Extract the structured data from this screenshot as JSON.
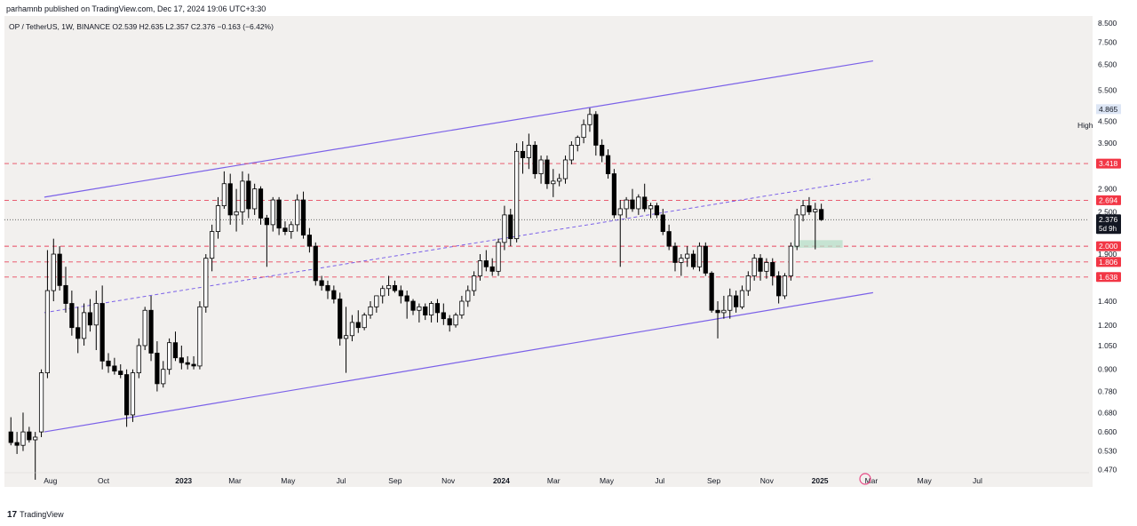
{
  "header": {
    "published_text": "parhamnb published on TradingView.com, Dec 17, 2024 19:06 UTC+3:30"
  },
  "symbol": {
    "pair": "OP / TetherUS, 1W, BINANCE",
    "open": "O2.539",
    "high": "H2.635",
    "low": "L2.357",
    "close": "C2.376",
    "change": "−0.163 (−6.42%)"
  },
  "footer": {
    "brand": "TradingView",
    "logo_text": "17"
  },
  "colors": {
    "background": "#f2f0ee",
    "candle_up": "#ffffff",
    "candle_down": "#000000",
    "channel_line": "#7b61e8",
    "level_line": "#e8475f",
    "label_red": "#f23645",
    "zone": "#b7dfc8"
  },
  "chart_data": {
    "type": "candlestick",
    "title": "OP / TetherUS, 1W, BINANCE",
    "y_scale": "log",
    "ylim": [
      0.42,
      8.9
    ],
    "y_ticks": [
      "8.500",
      "7.500",
      "6.500",
      "5.500",
      "4.500",
      "3.900",
      "3.418",
      "2.900",
      "2.694",
      "2.500",
      "2.376",
      "2.000",
      "1.900",
      "1.806",
      "1.638",
      "1.400",
      "1.200",
      "1.050",
      "0.900",
      "0.780",
      "0.680",
      "0.600",
      "0.530",
      "0.470"
    ],
    "x_ticks": [
      "Aug",
      "Oct",
      "2023",
      "Mar",
      "May",
      "Jul",
      "Sep",
      "Nov",
      "2024",
      "Mar",
      "May",
      "Jul",
      "Sep",
      "Nov",
      "2025",
      "Mar",
      "May",
      "Jul"
    ],
    "x_tick_dates": [
      "2022-08-01",
      "2022-10-01",
      "2023-01-01",
      "2023-03-01",
      "2023-05-01",
      "2023-07-01",
      "2023-09-01",
      "2023-11-01",
      "2024-01-01",
      "2024-03-01",
      "2024-05-01",
      "2024-07-01",
      "2024-09-01",
      "2024-11-01",
      "2025-01-01",
      "2025-03-01",
      "2025-05-01",
      "2025-07-01"
    ],
    "first_candle_date": "2022-06-13",
    "candle_interval": "1W",
    "ohlc": [
      [
        0.6,
        0.66,
        0.55,
        0.56
      ],
      [
        0.56,
        0.6,
        0.52,
        0.55
      ],
      [
        0.55,
        0.68,
        0.53,
        0.6
      ],
      [
        0.6,
        0.62,
        0.56,
        0.57
      ],
      [
        0.57,
        0.6,
        0.44,
        0.58
      ],
      [
        0.6,
        0.9,
        0.58,
        0.88
      ],
      [
        0.88,
        1.95,
        0.85,
        1.5
      ],
      [
        1.5,
        2.1,
        1.4,
        1.9
      ],
      [
        1.9,
        2.0,
        1.5,
        1.55
      ],
      [
        1.55,
        1.75,
        1.3,
        1.38
      ],
      [
        1.38,
        1.5,
        1.12,
        1.18
      ],
      [
        1.18,
        1.35,
        1.0,
        1.1
      ],
      [
        1.1,
        1.38,
        1.05,
        1.3
      ],
      [
        1.3,
        1.42,
        1.15,
        1.2
      ],
      [
        1.2,
        1.5,
        1.02,
        1.38
      ],
      [
        1.38,
        1.55,
        0.9,
        0.95
      ],
      [
        0.95,
        1.0,
        0.88,
        0.92
      ],
      [
        0.92,
        0.97,
        0.87,
        0.89
      ],
      [
        0.89,
        0.93,
        0.85,
        0.87
      ],
      [
        0.87,
        0.9,
        0.62,
        0.67
      ],
      [
        0.67,
        0.9,
        0.64,
        0.88
      ],
      [
        0.88,
        1.1,
        0.85,
        1.05
      ],
      [
        1.05,
        1.35,
        1.02,
        1.32
      ],
      [
        1.32,
        1.45,
        0.95,
        1.0
      ],
      [
        1.0,
        1.08,
        0.78,
        0.82
      ],
      [
        0.82,
        0.95,
        0.8,
        0.9
      ],
      [
        0.9,
        1.1,
        0.87,
        1.07
      ],
      [
        1.07,
        1.15,
        0.95,
        0.97
      ],
      [
        0.97,
        1.05,
        0.9,
        0.94
      ],
      [
        0.94,
        0.98,
        0.9,
        0.93
      ],
      [
        0.93,
        0.98,
        0.9,
        0.92
      ],
      [
        0.92,
        1.4,
        0.9,
        1.35
      ],
      [
        1.35,
        1.9,
        1.3,
        1.85
      ],
      [
        1.85,
        2.3,
        1.7,
        2.2
      ],
      [
        2.2,
        2.75,
        2.1,
        2.6
      ],
      [
        2.6,
        3.25,
        2.55,
        3.0
      ],
      [
        3.0,
        3.2,
        2.3,
        2.45
      ],
      [
        2.45,
        2.9,
        2.2,
        2.5
      ],
      [
        2.5,
        3.25,
        2.3,
        3.05
      ],
      [
        3.05,
        3.2,
        2.4,
        2.55
      ],
      [
        2.55,
        3.0,
        2.45,
        2.9
      ],
      [
        2.9,
        2.95,
        2.3,
        2.4
      ],
      [
        2.4,
        2.45,
        1.75,
        2.3
      ],
      [
        2.3,
        2.75,
        2.2,
        2.7
      ],
      [
        2.7,
        2.75,
        2.15,
        2.25
      ],
      [
        2.25,
        2.35,
        2.15,
        2.2
      ],
      [
        2.2,
        2.35,
        2.1,
        2.3
      ],
      [
        2.3,
        2.8,
        2.2,
        2.7
      ],
      [
        2.7,
        2.85,
        2.1,
        2.15
      ],
      [
        2.15,
        2.25,
        1.92,
        2.0
      ],
      [
        2.0,
        2.05,
        1.55,
        1.6
      ],
      [
        1.6,
        1.65,
        1.5,
        1.55
      ],
      [
        1.55,
        1.6,
        1.42,
        1.5
      ],
      [
        1.5,
        1.55,
        1.38,
        1.42
      ],
      [
        1.42,
        1.48,
        1.05,
        1.1
      ],
      [
        1.1,
        1.35,
        0.88,
        1.12
      ],
      [
        1.12,
        1.28,
        1.08,
        1.22
      ],
      [
        1.22,
        1.32,
        1.14,
        1.18
      ],
      [
        1.18,
        1.3,
        1.16,
        1.28
      ],
      [
        1.28,
        1.4,
        1.25,
        1.35
      ],
      [
        1.35,
        1.45,
        1.3,
        1.45
      ],
      [
        1.45,
        1.55,
        1.38,
        1.52
      ],
      [
        1.52,
        1.65,
        1.45,
        1.55
      ],
      [
        1.55,
        1.6,
        1.48,
        1.5
      ],
      [
        1.5,
        1.55,
        1.38,
        1.45
      ],
      [
        1.45,
        1.5,
        1.25,
        1.4
      ],
      [
        1.4,
        1.42,
        1.28,
        1.32
      ],
      [
        1.32,
        1.38,
        1.22,
        1.35
      ],
      [
        1.35,
        1.38,
        1.24,
        1.28
      ],
      [
        1.28,
        1.4,
        1.22,
        1.38
      ],
      [
        1.38,
        1.42,
        1.22,
        1.3
      ],
      [
        1.3,
        1.38,
        1.2,
        1.25
      ],
      [
        1.25,
        1.28,
        1.15,
        1.2
      ],
      [
        1.2,
        1.3,
        1.18,
        1.28
      ],
      [
        1.28,
        1.45,
        1.25,
        1.4
      ],
      [
        1.4,
        1.55,
        1.35,
        1.5
      ],
      [
        1.5,
        1.7,
        1.45,
        1.65
      ],
      [
        1.65,
        1.9,
        1.6,
        1.82
      ],
      [
        1.82,
        1.95,
        1.7,
        1.75
      ],
      [
        1.75,
        1.85,
        1.65,
        1.7
      ],
      [
        1.7,
        2.1,
        1.65,
        2.05
      ],
      [
        2.05,
        2.6,
        1.95,
        2.45
      ],
      [
        2.45,
        2.55,
        2.0,
        2.1
      ],
      [
        2.1,
        3.9,
        2.05,
        3.7
      ],
      [
        3.7,
        3.95,
        3.2,
        3.55
      ],
      [
        3.55,
        4.15,
        3.3,
        3.85
      ],
      [
        3.85,
        3.95,
        3.1,
        3.2
      ],
      [
        3.2,
        3.6,
        3.0,
        3.5
      ],
      [
        3.5,
        3.6,
        2.9,
        3.0
      ],
      [
        3.0,
        3.3,
        2.75,
        3.05
      ],
      [
        3.05,
        3.2,
        2.95,
        3.1
      ],
      [
        3.1,
        3.6,
        3.0,
        3.5
      ],
      [
        3.5,
        3.95,
        3.4,
        3.85
      ],
      [
        3.85,
        4.1,
        3.7,
        4.05
      ],
      [
        4.05,
        4.55,
        3.9,
        4.4
      ],
      [
        4.4,
        4.9,
        4.2,
        4.7
      ],
      [
        4.7,
        4.8,
        3.6,
        3.85
      ],
      [
        3.85,
        4.0,
        3.45,
        3.6
      ],
      [
        3.6,
        3.75,
        3.1,
        3.2
      ],
      [
        3.2,
        3.3,
        2.4,
        2.45
      ],
      [
        2.45,
        2.7,
        1.75,
        2.55
      ],
      [
        2.55,
        2.75,
        2.4,
        2.7
      ],
      [
        2.7,
        2.9,
        2.5,
        2.55
      ],
      [
        2.55,
        2.8,
        2.45,
        2.75
      ],
      [
        2.75,
        3.0,
        2.5,
        2.55
      ],
      [
        2.55,
        2.65,
        2.4,
        2.6
      ],
      [
        2.6,
        2.65,
        2.4,
        2.45
      ],
      [
        2.45,
        2.55,
        2.15,
        2.2
      ],
      [
        2.2,
        2.3,
        1.95,
        2.0
      ],
      [
        2.0,
        2.05,
        1.7,
        1.8
      ],
      [
        1.8,
        1.9,
        1.65,
        1.85
      ],
      [
        1.85,
        2.0,
        1.75,
        1.9
      ],
      [
        1.9,
        1.95,
        1.72,
        1.75
      ],
      [
        1.75,
        2.05,
        1.7,
        2.0
      ],
      [
        2.0,
        2.05,
        1.65,
        1.68
      ],
      [
        1.68,
        1.7,
        1.3,
        1.32
      ],
      [
        1.32,
        1.4,
        1.1,
        1.3
      ],
      [
        1.3,
        1.45,
        1.25,
        1.32
      ],
      [
        1.32,
        1.52,
        1.25,
        1.45
      ],
      [
        1.45,
        1.5,
        1.3,
        1.35
      ],
      [
        1.35,
        1.55,
        1.33,
        1.5
      ],
      [
        1.5,
        1.7,
        1.45,
        1.65
      ],
      [
        1.65,
        1.9,
        1.6,
        1.85
      ],
      [
        1.85,
        1.9,
        1.6,
        1.7
      ],
      [
        1.7,
        1.85,
        1.62,
        1.8
      ],
      [
        1.8,
        1.85,
        1.55,
        1.65
      ],
      [
        1.65,
        1.7,
        1.38,
        1.45
      ],
      [
        1.45,
        1.68,
        1.42,
        1.65
      ],
      [
        1.65,
        2.05,
        1.6,
        2.0
      ],
      [
        2.0,
        2.55,
        1.95,
        2.45
      ],
      [
        2.45,
        2.7,
        2.35,
        2.6
      ],
      [
        2.6,
        2.75,
        2.45,
        2.5
      ],
      [
        2.5,
        2.65,
        1.96,
        2.54
      ],
      [
        2.539,
        2.635,
        2.357,
        2.376
      ]
    ],
    "lines": [
      {
        "kind": "channel_upper",
        "from": [
          "2022-07-25",
          2.75
        ],
        "to": [
          "2025-03-03",
          6.65
        ]
      },
      {
        "kind": "channel_mid_dashed",
        "from": [
          "2022-07-25",
          1.3
        ],
        "to": [
          "2025-03-03",
          3.1
        ]
      },
      {
        "kind": "channel_lower",
        "from": [
          "2022-07-25",
          0.6
        ],
        "to": [
          "2025-03-03",
          1.48
        ]
      }
    ],
    "levels": [
      {
        "value": 3.418,
        "label": "3.418",
        "style": "red-dashed"
      },
      {
        "value": 2.694,
        "label": "2.694",
        "style": "red-dashed"
      },
      {
        "value": 2.0,
        "label": "2.000",
        "style": "red-dashed"
      },
      {
        "value": 1.806,
        "label": "1.806",
        "style": "red-dashed"
      },
      {
        "value": 1.638,
        "label": "1.638",
        "style": "red-dashed"
      }
    ],
    "current_price": {
      "value": 2.376,
      "label": "2.376",
      "countdown": "5d 9h"
    },
    "high_marker": {
      "value": 4.865,
      "label": "High",
      "price": "4.865"
    },
    "zone": {
      "from": "2024-12-02",
      "to": "2025-01-27",
      "low": 1.98,
      "high": 2.08
    }
  }
}
